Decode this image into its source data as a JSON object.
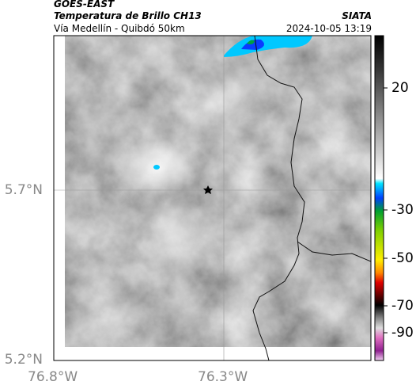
{
  "header": {
    "satellite": "GOES-EAST",
    "product": "Temperatura de Brillo CH13",
    "source": "SIATA",
    "region": "Vía Medellín - Quibdó 50km",
    "timestamp": "2024-10-05 13:19"
  },
  "axes": {
    "latitude_labels": [
      "5.7°N",
      "5.2°N"
    ],
    "longitude_labels": [
      "76.8°W",
      "76.3°W"
    ]
  },
  "colorbar": {
    "ticks": [
      20,
      -30,
      -50,
      -70,
      -90
    ]
  }
}
